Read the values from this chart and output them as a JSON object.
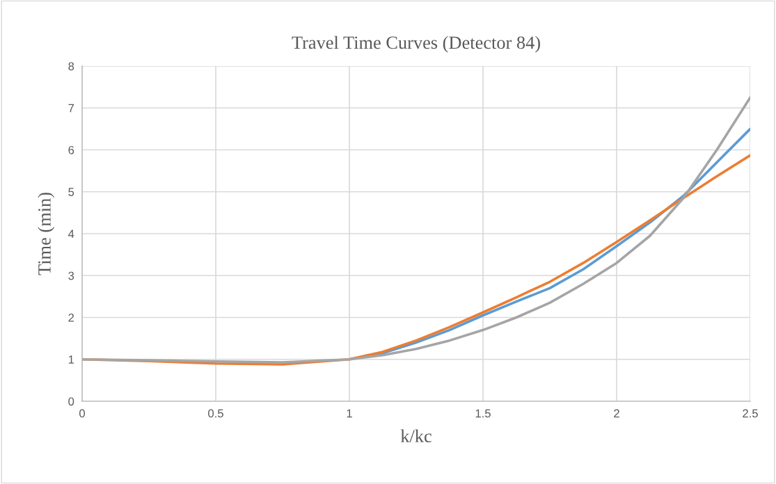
{
  "chart_data": {
    "type": "line",
    "title": "Travel Time Curves (Detector 84)",
    "xlabel": "k/kc",
    "ylabel": "Time (min)",
    "x": [
      0,
      0.25,
      0.5,
      0.75,
      1,
      1.125,
      1.25,
      1.375,
      1.5,
      1.625,
      1.75,
      1.875,
      2,
      2.125,
      2.25,
      2.375,
      2.5
    ],
    "series": [
      {
        "color": "#5b9bd5",
        "values": [
          null,
          null,
          null,
          null,
          1,
          1.15,
          1.4,
          1.7,
          2.05,
          2.38,
          2.7,
          3.15,
          3.7,
          4.27,
          4.9,
          5.7,
          6.5
        ]
      },
      {
        "color": "#ed7d31",
        "values": [
          1,
          0.96,
          0.9,
          0.88,
          1,
          1.18,
          1.45,
          1.77,
          2.12,
          2.48,
          2.85,
          3.3,
          3.8,
          4.32,
          4.85,
          5.37,
          5.87
        ]
      },
      {
        "color": "#a5a5a5",
        "values": [
          1,
          0.98,
          0.95,
          0.93,
          1,
          1.1,
          1.25,
          1.45,
          1.7,
          2.0,
          2.35,
          2.8,
          3.3,
          3.95,
          4.85,
          6.0,
          7.25
        ]
      }
    ],
    "xlim": [
      0,
      2.5
    ],
    "xticks": [
      0,
      0.5,
      1,
      1.5,
      2,
      2.5
    ],
    "ylim": [
      0,
      8
    ],
    "yticks": [
      0,
      1,
      2,
      3,
      4,
      5,
      6,
      7,
      8
    ],
    "grid": true,
    "marker": "none",
    "line_style": "solid"
  }
}
